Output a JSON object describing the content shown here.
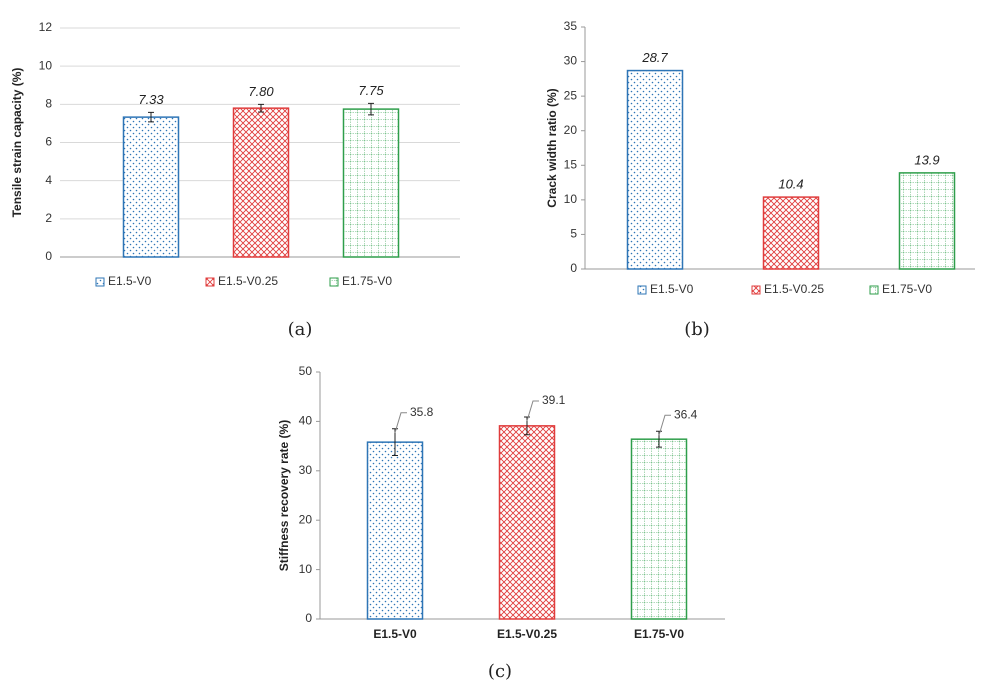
{
  "chart_data": [
    {
      "type": "bar",
      "caption": "(a)",
      "ylabel": "Tensile strain capacity (%)",
      "categories": [
        null
      ],
      "series": [
        {
          "name": "E1.5-V0",
          "color": "#2e75b6",
          "values": [
            7.33
          ],
          "errors": [
            0.25
          ]
        },
        {
          "name": "E1.5-V0.25",
          "color": "#e03c3c",
          "values": [
            7.8
          ],
          "value_labels": [
            "7.80"
          ],
          "errors": [
            0.2
          ]
        },
        {
          "name": "E1.75-V0",
          "color": "#2e9e4a",
          "values": [
            7.75
          ],
          "errors": [
            0.3
          ]
        }
      ],
      "ylim": [
        0,
        12
      ],
      "yticks": [
        0,
        2,
        4,
        6,
        8,
        10,
        12
      ],
      "grid": true,
      "legend": "bottom"
    },
    {
      "type": "bar",
      "caption": "(b)",
      "ylabel": "Crack width ratio (%)",
      "categories": [
        null
      ],
      "series": [
        {
          "name": "E1.5-V0",
          "color": "#2e75b6",
          "values": [
            28.7
          ]
        },
        {
          "name": "E1.5-V0.25",
          "color": "#e03c3c",
          "values": [
            10.4
          ]
        },
        {
          "name": "E1.75-V0",
          "color": "#2e9e4a",
          "values": [
            13.9
          ]
        }
      ],
      "ylim": [
        0,
        35
      ],
      "yticks": [
        0,
        5,
        10,
        15,
        20,
        25,
        30,
        35
      ],
      "grid": false,
      "legend": "bottom"
    },
    {
      "type": "bar",
      "caption": "(c)",
      "ylabel": "Stiffness recovery rate (%)",
      "categories": [
        "E1.5-V0",
        "E1.5-V0.25",
        "E1.75-V0"
      ],
      "values": [
        35.8,
        39.1,
        36.4
      ],
      "errors": [
        2.7,
        1.8,
        1.6
      ],
      "colors": [
        "#2e75b6",
        "#e03c3c",
        "#2e9e4a"
      ],
      "ylim": [
        0,
        50
      ],
      "yticks": [
        0,
        10,
        20,
        30,
        40,
        50
      ],
      "grid": false
    }
  ]
}
